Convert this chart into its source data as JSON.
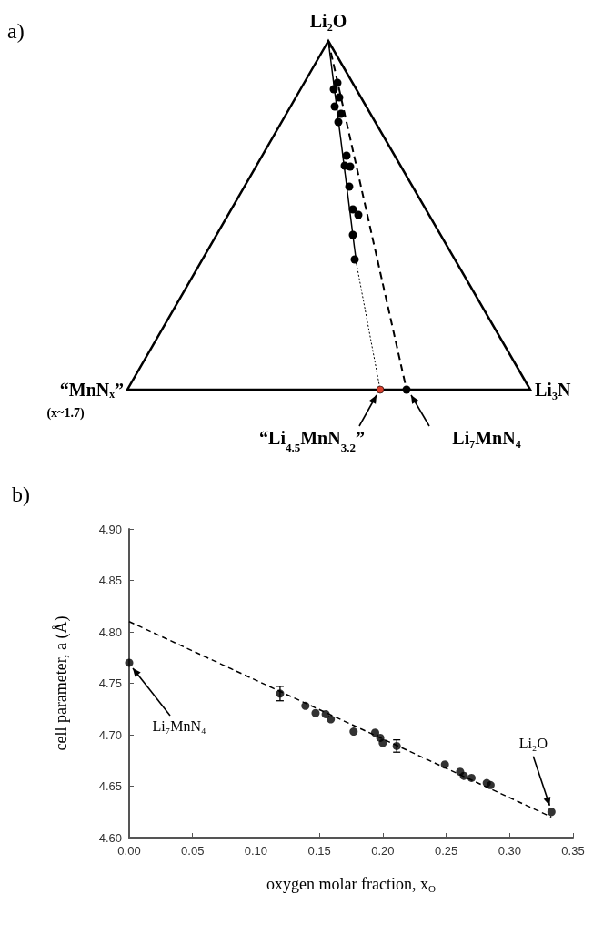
{
  "chart_data": [
    {
      "type": "other",
      "title": "a)",
      "annotations": [
        "Li₂O",
        "“MnNₓ”",
        "(x~1.7)",
        "Li₃N",
        "“Li$_{4.5}$MnN$_{3.2}$”",
        "Li₇MnN₄"
      ]
    },
    {
      "type": "scatter",
      "title": "b)",
      "xlabel": "oxygen molar fraction, x$_{O}$",
      "ylabel": "cell parameter, a (Å)",
      "series": [
        {
          "type": "scatter",
          "color": "#000000",
          "marker": "circle",
          "x": [
            0,
            0.119,
            0.139,
            0.147,
            0.155,
            0.159,
            0.177,
            0.194,
            0.198,
            0.2,
            0.211,
            0.249,
            0.261,
            0.264,
            0.27,
            0.282,
            0.285,
            0.333
          ],
          "values": [
            4.77,
            4.74,
            4.728,
            4.721,
            4.72,
            4.715,
            4.703,
            4.702,
            4.697,
            4.692,
            4.689,
            4.671,
            4.664,
            4.66,
            4.658,
            4.653,
            4.651,
            4.625
          ],
          "errors": [
            null,
            0.007,
            null,
            null,
            null,
            null,
            null,
            null,
            null,
            null,
            0.006,
            null,
            null,
            null,
            null,
            null,
            null,
            null
          ]
        },
        {
          "type": "line",
          "color": "#000000",
          "marker": "none",
          "line_style": "dashed",
          "x": [
            0,
            0.333
          ],
          "values": [
            4.81,
            4.62
          ]
        }
      ],
      "xlim": [
        0,
        0.35
      ],
      "xticks": [
        {
          "value": 0,
          "label": "0.00"
        },
        {
          "value": 0.05,
          "label": "0.05"
        },
        {
          "value": 0.1,
          "label": "0.10"
        },
        {
          "value": 0.15,
          "label": "0.15"
        },
        {
          "value": 0.2,
          "label": "0.20"
        },
        {
          "value": 0.25,
          "label": "0.25"
        },
        {
          "value": 0.3,
          "label": "0.30"
        },
        {
          "value": 0.35,
          "label": "0.35"
        }
      ],
      "ylim": [
        4.6,
        4.9
      ],
      "yticks": [
        {
          "value": 4.6,
          "label": "4.60"
        },
        {
          "value": 4.65,
          "label": "4.65"
        },
        {
          "value": 4.7,
          "label": "4.70"
        },
        {
          "value": 4.75,
          "label": "4.75"
        },
        {
          "value": 4.8,
          "label": "4.80"
        },
        {
          "value": 4.85,
          "label": "4.85"
        },
        {
          "value": 4.9,
          "label": "4.90"
        }
      ],
      "grid": false,
      "annotations": [
        {
          "text": "Li₇MnN₄",
          "x": 0,
          "y": 4.77
        },
        {
          "text": "Li₂O",
          "x": 0.333,
          "y": 4.625
        }
      ]
    }
  ]
}
